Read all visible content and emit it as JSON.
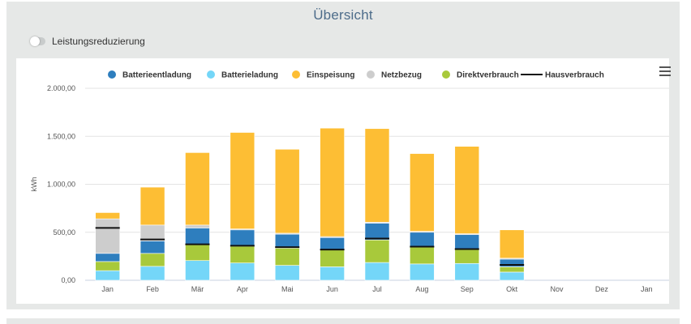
{
  "page": {
    "title": "Übersicht",
    "toggle_label": "Leistungsreduzierung"
  },
  "colors": {
    "Batterieentladung": "#2e7ebe",
    "Batterieladung": "#74d6f8",
    "Einspeisung": "#fdbe34",
    "Netzbezug": "#cdcdcd",
    "Direktverbrauch": "#a8c93b",
    "Hausverbrauch": "#111111"
  },
  "chart_data": {
    "type": "bar",
    "stacked": true,
    "ylabel": "kWh",
    "ylim": [
      0,
      2000
    ],
    "yticks": [
      0,
      500,
      1000,
      1500,
      2000
    ],
    "ytick_labels": [
      "0,00",
      "500,00",
      "1.000,00",
      "1.500,00",
      "2.000,00"
    ],
    "grid": true,
    "legend_position": "top",
    "categories": [
      "Jan",
      "Feb",
      "Mär",
      "Apr",
      "Mai",
      "Jun",
      "Jul",
      "Aug",
      "Sep",
      "Okt",
      "Nov",
      "Dez",
      "Jan"
    ],
    "series": [
      {
        "name": "Batterieladung",
        "values": [
          100,
          145,
          205,
          180,
          155,
          140,
          185,
          170,
          175,
          85,
          0,
          0,
          0
        ]
      },
      {
        "name": "Direktverbrauch",
        "values": [
          95,
          135,
          165,
          175,
          180,
          180,
          235,
          175,
          145,
          55,
          0,
          0,
          0
        ]
      },
      {
        "name": "Batterieentladung",
        "values": [
          85,
          130,
          175,
          170,
          145,
          125,
          175,
          155,
          155,
          80,
          0,
          0,
          0
        ]
      },
      {
        "name": "Netzbezug",
        "values": [
          360,
          165,
          30,
          10,
          10,
          10,
          10,
          10,
          10,
          10,
          0,
          0,
          0
        ]
      },
      {
        "name": "Einspeisung",
        "values": [
          65,
          395,
          755,
          1005,
          875,
          1130,
          975,
          810,
          910,
          295,
          0,
          0,
          0
        ]
      }
    ],
    "line_series": {
      "name": "Hausverbrauch",
      "values": [
        545,
        425,
        375,
        360,
        345,
        320,
        435,
        350,
        325,
        160,
        null,
        null,
        null
      ]
    },
    "legend": [
      "Batterieentladung",
      "Batterieladung",
      "Einspeisung",
      "Netzbezug",
      "Direktverbrauch",
      "Hausverbrauch"
    ]
  }
}
